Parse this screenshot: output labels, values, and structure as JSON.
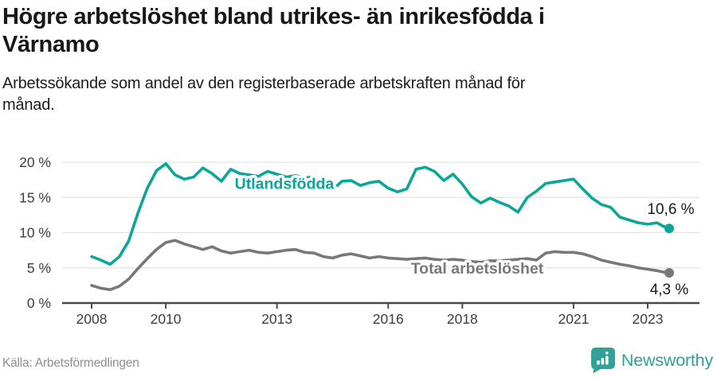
{
  "header": {
    "title_line1": "Högre arbetslöshet bland utrikes- än inrikesfödda i",
    "title_line2": "Värnamo",
    "subtitle_line1": "Arbetssökande som andel av den registerbaserade arbetskraften månad för",
    "subtitle_line2": "månad."
  },
  "footer": {
    "source": "Källa: Arbetsförmedlingen",
    "brand": "Newsworthy",
    "brand_color": "#2f9e97",
    "brand_icon": "newsworthy-bars-pin",
    "brand_icon_color": "#33a09a"
  },
  "chart_data": {
    "type": "line",
    "title": "Högre arbetslöshet bland utrikes- än inrikesfödda i Värnamo",
    "xlabel": "",
    "ylabel": "",
    "grid": true,
    "legend_position": "inline-on-line",
    "x_range": [
      2008,
      2023.58
    ],
    "ylim": [
      0,
      20
    ],
    "y_ticks": [
      {
        "v": 0,
        "label": "0 %"
      },
      {
        "v": 5,
        "label": "5 %"
      },
      {
        "v": 10,
        "label": "10 %"
      },
      {
        "v": 15,
        "label": "15 %"
      },
      {
        "v": 20,
        "label": "20 %"
      }
    ],
    "x_ticks": [
      {
        "v": 2008,
        "label": "2008"
      },
      {
        "v": 2010,
        "label": "2010"
      },
      {
        "v": 2013,
        "label": "2013"
      },
      {
        "v": 2016,
        "label": "2016"
      },
      {
        "v": 2018,
        "label": "2018"
      },
      {
        "v": 2021,
        "label": "2021"
      },
      {
        "v": 2023,
        "label": "2023"
      }
    ],
    "colors": {
      "axis": "#4a4a4a",
      "grid": "#e3e3e3",
      "tick_text": "#3d3d3d",
      "value_label": "#1a1a1a"
    },
    "x": [
      2008,
      2008.25,
      2008.5,
      2008.75,
      2009,
      2009.25,
      2009.5,
      2009.75,
      2010,
      2010.25,
      2010.5,
      2010.75,
      2011,
      2011.25,
      2011.5,
      2011.75,
      2012,
      2012.25,
      2012.5,
      2012.75,
      2013,
      2013.25,
      2013.5,
      2013.75,
      2014,
      2014.25,
      2014.5,
      2014.75,
      2015,
      2015.25,
      2015.5,
      2015.75,
      2016,
      2016.25,
      2016.5,
      2016.75,
      2017,
      2017.25,
      2017.5,
      2017.75,
      2018,
      2018.25,
      2018.5,
      2018.75,
      2019,
      2019.25,
      2019.5,
      2019.75,
      2020,
      2020.25,
      2020.5,
      2020.75,
      2021,
      2021.25,
      2021.5,
      2021.75,
      2022,
      2022.25,
      2022.5,
      2022.75,
      2023,
      2023.25,
      2023.42,
      2023.58
    ],
    "series": [
      {
        "id": "utlandsfodda",
        "name": "Utlandsfödda",
        "color": "#0aa699",
        "end_value_label": "10,6 %",
        "end_value": 10.6,
        "label_pos": {
          "x": 2013.2,
          "y": 17.0
        },
        "end_label_offset": {
          "dx": 2,
          "dy": -18
        },
        "values": [
          6.6,
          6.1,
          5.5,
          6.6,
          8.8,
          12.8,
          16.3,
          18.8,
          19.8,
          18.2,
          17.6,
          17.9,
          19.2,
          18.4,
          17.3,
          19.0,
          18.4,
          18.2,
          18.0,
          18.7,
          18.3,
          17.9,
          18.1,
          17.8,
          17.9,
          16.9,
          16.1,
          17.3,
          17.4,
          16.7,
          17.1,
          17.3,
          16.3,
          15.8,
          16.2,
          19.0,
          19.3,
          18.7,
          17.4,
          18.3,
          16.9,
          15.1,
          14.2,
          14.9,
          14.3,
          13.8,
          12.9,
          15.0,
          15.9,
          17.0,
          17.2,
          17.4,
          17.6,
          16.2,
          14.9,
          14.0,
          13.6,
          12.2,
          11.8,
          11.4,
          11.2,
          11.4,
          10.9,
          10.6
        ]
      },
      {
        "id": "total-arbetsloshet",
        "name": "Total arbetslöshet",
        "color": "#787878",
        "end_value_label": "4,3 %",
        "end_value": 4.3,
        "label_pos": {
          "x": 2018.4,
          "y": 5.0
        },
        "end_label_offset": {
          "dx": 0,
          "dy": 27
        },
        "values": [
          2.5,
          2.1,
          1.9,
          2.4,
          3.4,
          4.9,
          6.3,
          7.6,
          8.6,
          8.9,
          8.4,
          8.0,
          7.6,
          8.0,
          7.4,
          7.1,
          7.3,
          7.5,
          7.2,
          7.1,
          7.3,
          7.5,
          7.6,
          7.2,
          7.1,
          6.6,
          6.4,
          6.8,
          7.0,
          6.7,
          6.4,
          6.6,
          6.4,
          6.3,
          6.2,
          6.3,
          6.4,
          6.2,
          6.1,
          6.2,
          6.1,
          5.9,
          5.8,
          6.0,
          6.0,
          6.1,
          6.2,
          6.3,
          6.1,
          7.1,
          7.3,
          7.2,
          7.2,
          7.0,
          6.6,
          6.1,
          5.8,
          5.5,
          5.3,
          5.0,
          4.8,
          4.6,
          4.4,
          4.3
        ]
      }
    ]
  }
}
